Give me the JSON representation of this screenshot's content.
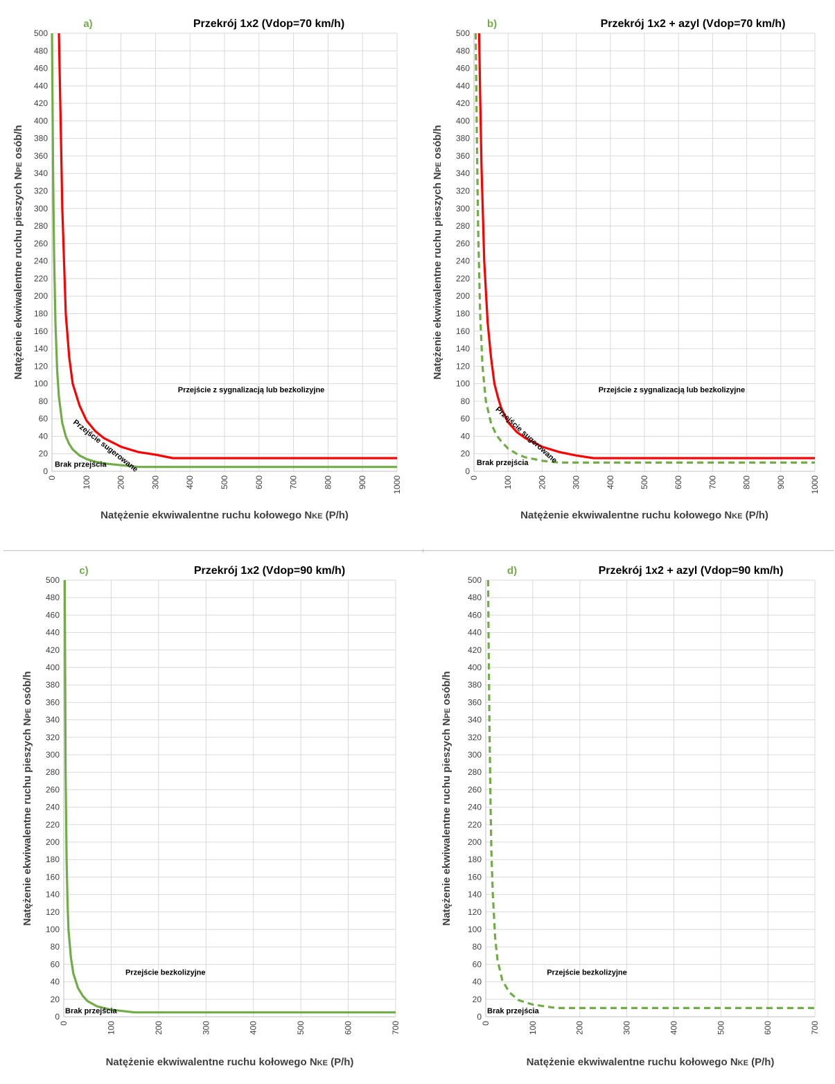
{
  "chart_data": [
    {
      "id": "a",
      "type": "line",
      "panel_label": "a)",
      "title": "Przekrój 1x2 (Vdop=70 km/h)",
      "xlabel_main": "Natężenie ekwiwalentne ruchu kołowego",
      "xlabel_symbol": "N",
      "xlabel_subscript": "KE",
      "xlabel_unit": "(P/h)",
      "ylabel_main": "Natężenie ekwiwalentne ruchu pieszych",
      "ylabel_symbol": "N",
      "ylabel_subscript": "PE",
      "ylabel_unit": "osób/h",
      "xlim": [
        0,
        1000
      ],
      "ylim": [
        0,
        500
      ],
      "xticks": [
        0,
        100,
        200,
        300,
        400,
        500,
        600,
        700,
        800,
        900,
        1000
      ],
      "yticks": [
        0,
        20,
        40,
        60,
        80,
        100,
        120,
        140,
        160,
        180,
        200,
        220,
        240,
        260,
        280,
        300,
        320,
        340,
        360,
        380,
        400,
        420,
        440,
        460,
        480,
        500
      ],
      "grid": true,
      "series": [
        {
          "color": "#ff0000",
          "dashed": false,
          "x": [
            20,
            25,
            30,
            40,
            50,
            60,
            80,
            100,
            125,
            150,
            200,
            250,
            300,
            350,
            400,
            500,
            600,
            700,
            800,
            900,
            1000
          ],
          "y": [
            500,
            400,
            300,
            180,
            130,
            100,
            75,
            58,
            46,
            38,
            28,
            22,
            19,
            15,
            15,
            15,
            15,
            15,
            15,
            15,
            15
          ]
        },
        {
          "color": "#70ad47",
          "dashed": false,
          "x": [
            0,
            3,
            6,
            10,
            15,
            20,
            30,
            40,
            50,
            60,
            80,
            100,
            125,
            150,
            200,
            250,
            300,
            400,
            500,
            600,
            700,
            800,
            900,
            1000
          ],
          "y": [
            500,
            350,
            250,
            170,
            115,
            85,
            55,
            40,
            31,
            25,
            18,
            14,
            11,
            9,
            7,
            5,
            5,
            5,
            5,
            5,
            5,
            5,
            5,
            5
          ]
        }
      ],
      "annotations": [
        {
          "text": "Przejście z sygnalizacją lub bezkolizyjne",
          "x": 365,
          "y": 90,
          "rotate": 0,
          "anchor": "start"
        },
        {
          "text": "Przejście sugerowane",
          "x": 60,
          "y": 55,
          "rotate": 38,
          "anchor": "start"
        },
        {
          "text": "Brak przejścia",
          "x": 8,
          "y": 5,
          "rotate": 0,
          "anchor": "start"
        }
      ]
    },
    {
      "id": "b",
      "type": "line",
      "panel_label": "b)",
      "title": "Przekrój 1x2 + azyl (Vdop=70 km/h)",
      "xlabel_main": "Natężenie ekwiwalentne ruchu kołowego",
      "xlabel_symbol": "N",
      "xlabel_subscript": "KE",
      "xlabel_unit": "(P/h)",
      "ylabel_main": "Natężenie ekwiwalentne ruchu pieszych",
      "ylabel_symbol": "N",
      "ylabel_subscript": "PE",
      "ylabel_unit": "osób/h",
      "xlim": [
        0,
        1000
      ],
      "ylim": [
        0,
        500
      ],
      "xticks": [
        0,
        100,
        200,
        300,
        400,
        500,
        600,
        700,
        800,
        900,
        1000
      ],
      "yticks": [
        0,
        20,
        40,
        60,
        80,
        100,
        120,
        140,
        160,
        180,
        200,
        220,
        240,
        260,
        280,
        300,
        320,
        340,
        360,
        380,
        400,
        420,
        440,
        460,
        480,
        500
      ],
      "grid": true,
      "series": [
        {
          "color": "#ff0000",
          "dashed": false,
          "x": [
            15,
            18,
            22,
            30,
            40,
            50,
            60,
            70,
            80,
            100,
            125,
            150,
            200,
            250,
            300,
            350,
            400,
            500,
            600,
            700,
            800,
            900,
            1000
          ],
          "y": [
            500,
            430,
            350,
            240,
            170,
            130,
            100,
            85,
            72,
            56,
            45,
            38,
            28,
            22,
            18,
            15,
            15,
            15,
            15,
            15,
            15,
            15,
            15
          ]
        },
        {
          "color": "#70ad47",
          "dashed": true,
          "x": [
            5,
            8,
            12,
            18,
            25,
            35,
            50,
            65,
            80,
            100,
            125,
            150,
            200,
            250,
            300,
            400,
            500,
            600,
            700,
            800,
            900,
            1000
          ],
          "y": [
            500,
            400,
            280,
            180,
            120,
            80,
            55,
            42,
            34,
            26,
            20,
            16,
            12,
            10,
            10,
            10,
            10,
            10,
            10,
            10,
            10,
            10
          ]
        }
      ],
      "annotations": [
        {
          "text": "Przejście z sygnalizacją lub bezkolizyjne",
          "x": 365,
          "y": 90,
          "rotate": 0,
          "anchor": "start"
        },
        {
          "text": "Przejście sugerowane",
          "x": 62,
          "y": 70,
          "rotate": 42,
          "anchor": "start"
        },
        {
          "text": "Brak przejścia",
          "x": 8,
          "y": 7,
          "rotate": 0,
          "anchor": "start"
        }
      ]
    },
    {
      "id": "c",
      "type": "line",
      "panel_label": "c)",
      "title": "Przekrój 1x2 (Vdop=90 km/h)",
      "xlabel_main": "Natężenie ekwiwalentne ruchu kołowego",
      "xlabel_symbol": "N",
      "xlabel_subscript": "KE",
      "xlabel_unit": "(P/h)",
      "ylabel_main": "Natężenie ekwiwalentne ruchu pieszych",
      "ylabel_symbol": "N",
      "ylabel_subscript": "PE",
      "ylabel_unit": "osób/h",
      "xlim": [
        0,
        700
      ],
      "ylim": [
        0,
        500
      ],
      "xticks": [
        0,
        100,
        200,
        300,
        400,
        500,
        600,
        700
      ],
      "yticks": [
        0,
        20,
        40,
        60,
        80,
        100,
        120,
        140,
        160,
        180,
        200,
        220,
        240,
        260,
        280,
        300,
        320,
        340,
        360,
        380,
        400,
        420,
        440,
        460,
        480,
        500
      ],
      "grid": true,
      "series": [
        {
          "color": "#70ad47",
          "dashed": false,
          "x": [
            2,
            3,
            4,
            6,
            8,
            10,
            15,
            20,
            30,
            40,
            50,
            70,
            100,
            150,
            200,
            300,
            400,
            500,
            600,
            700
          ],
          "y": [
            500,
            380,
            280,
            180,
            130,
            100,
            68,
            50,
            33,
            24,
            18,
            12,
            8,
            5,
            5,
            5,
            5,
            5,
            5,
            5
          ]
        }
      ],
      "annotations": [
        {
          "text": "Przejście bezkolizyjne",
          "x": 130,
          "y": 48,
          "rotate": 0,
          "anchor": "start"
        },
        {
          "text": "Brak przejścia",
          "x": 3,
          "y": 4,
          "rotate": 0,
          "anchor": "start"
        }
      ]
    },
    {
      "id": "d",
      "type": "line",
      "panel_label": "d)",
      "title": "Przekrój 1x2 + azyl (Vdop=90 km/h)",
      "xlabel_main": "Natężenie ekwiwalentne ruchu kołowego",
      "xlabel_symbol": "N",
      "xlabel_subscript": "KE",
      "xlabel_unit": "(P/h)",
      "ylabel_main": "Natężenie ekwiwalentne ruchu pieszych",
      "ylabel_symbol": "N",
      "ylabel_subscript": "PE",
      "ylabel_unit": "osób/h",
      "xlim": [
        0,
        700
      ],
      "ylim": [
        0,
        500
      ],
      "xticks": [
        0,
        100,
        200,
        300,
        400,
        500,
        600,
        700
      ],
      "yticks": [
        0,
        20,
        40,
        60,
        80,
        100,
        120,
        140,
        160,
        180,
        200,
        220,
        240,
        260,
        280,
        300,
        320,
        340,
        360,
        380,
        400,
        420,
        440,
        460,
        480,
        500
      ],
      "grid": true,
      "series": [
        {
          "color": "#70ad47",
          "dashed": true,
          "x": [
            5,
            6,
            8,
            10,
            12,
            15,
            20,
            25,
            35,
            50,
            70,
            100,
            150,
            200,
            300,
            400,
            500,
            600,
            700
          ],
          "y": [
            500,
            430,
            330,
            250,
            190,
            140,
            90,
            65,
            42,
            28,
            19,
            14,
            10,
            10,
            10,
            10,
            10,
            10,
            10
          ]
        }
      ],
      "annotations": [
        {
          "text": "Przejście bezkolizyjne",
          "x": 130,
          "y": 48,
          "rotate": 0,
          "anchor": "start"
        },
        {
          "text": "Brak przejścia",
          "x": 3,
          "y": 4,
          "rotate": 0,
          "anchor": "start"
        }
      ]
    }
  ]
}
